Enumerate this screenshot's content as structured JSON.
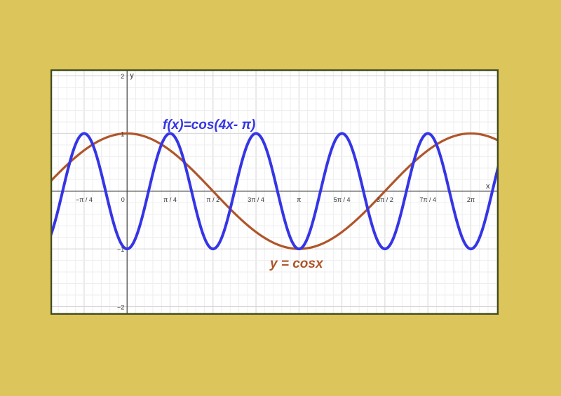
{
  "chart_data": {
    "type": "line",
    "title": "",
    "xlabel": "x",
    "ylabel": "y",
    "xlim": [
      -1.4,
      6.79
    ],
    "ylim": [
      -2.14,
      2.11
    ],
    "grid": true,
    "x_ticks": [
      {
        "value": -0.7854,
        "label": "−π / 4"
      },
      {
        "value": 0,
        "label": "0"
      },
      {
        "value": 0.7854,
        "label": "π / 4"
      },
      {
        "value": 1.5708,
        "label": "π / 2"
      },
      {
        "value": 2.3562,
        "label": "3π / 4"
      },
      {
        "value": 3.1416,
        "label": "π"
      },
      {
        "value": 3.927,
        "label": "5π / 4"
      },
      {
        "value": 4.7124,
        "label": "3π / 2"
      },
      {
        "value": 5.4978,
        "label": "7π / 4"
      },
      {
        "value": 6.2832,
        "label": "2π"
      }
    ],
    "y_ticks": [
      {
        "value": 2,
        "label": "2"
      },
      {
        "value": 1,
        "label": "1"
      },
      {
        "value": -1,
        "label": "−1"
      },
      {
        "value": -2,
        "label": "−2"
      }
    ],
    "series": [
      {
        "name": "f(x)=cos(4x- π)",
        "function": "cos(4x - π)",
        "color": "#3535e6"
      },
      {
        "name": "y = cosx",
        "function": "cos(x)",
        "color": "#b0552a"
      }
    ],
    "colors": {
      "background": "#dcc55a",
      "frame": "#3f4a1e",
      "plot_bg": "#ffffff",
      "major_grid": "#d4d4d4",
      "minor_grid": "#eeeeee"
    }
  }
}
